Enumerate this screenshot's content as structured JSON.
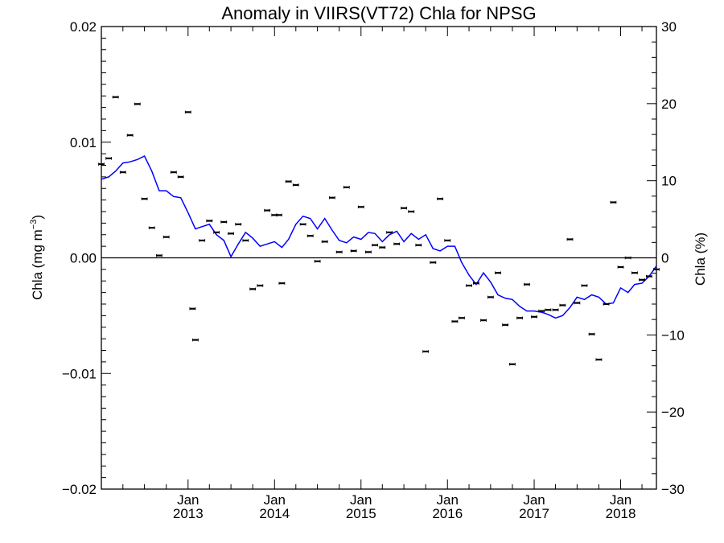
{
  "chart_data": {
    "type": "line",
    "title": "Anomaly in VIIRS(VT72) Chla for NPSG",
    "ylabel_left": "Chla (mg m",
    "ylabel_left_sup": "−3",
    "ylabel_left_close": ")",
    "ylabel_right": "Chla (%)",
    "xlim": [
      "2012-01-01",
      "2018-06-01"
    ],
    "ylim_left": [
      -0.02,
      0.02
    ],
    "ylim_right": [
      -30,
      30
    ],
    "left_ticks": [
      {
        "value": 0.02,
        "label": "0.02"
      },
      {
        "value": 0.01,
        "label": "0.01"
      },
      {
        "value": 0.0,
        "label": "0.00"
      },
      {
        "value": -0.01,
        "label": "−0.01"
      },
      {
        "value": -0.02,
        "label": "−0.02"
      }
    ],
    "right_ticks": [
      {
        "value": 30,
        "label": "30"
      },
      {
        "value": 20,
        "label": "20"
      },
      {
        "value": 10,
        "label": "10"
      },
      {
        "value": 0,
        "label": "0"
      },
      {
        "value": -10,
        "label": "−10"
      },
      {
        "value": -20,
        "label": "−20"
      },
      {
        "value": -30,
        "label": "−30"
      }
    ],
    "x_ticks": [
      {
        "date": "2013-01-01",
        "month": "Jan",
        "year": "2013"
      },
      {
        "date": "2014-01-01",
        "month": "Jan",
        "year": "2014"
      },
      {
        "date": "2015-01-01",
        "month": "Jan",
        "year": "2015"
      },
      {
        "date": "2016-01-01",
        "month": "Jan",
        "year": "2016"
      },
      {
        "date": "2017-01-01",
        "month": "Jan",
        "year": "2017"
      },
      {
        "date": "2018-01-01",
        "month": "Jan",
        "year": "2018"
      }
    ],
    "zero_line": 0,
    "grid": false,
    "colors": {
      "line": "#0000ff",
      "points": "#000000",
      "axes": "#000000"
    },
    "series": [
      {
        "kind": "line",
        "x": [
          "2012-01-01",
          "2012-02-01",
          "2012-03-01",
          "2012-04-01",
          "2012-05-01",
          "2012-06-01",
          "2012-07-01",
          "2012-08-01",
          "2012-09-01",
          "2012-10-01",
          "2012-11-01",
          "2012-12-01",
          "2013-01-01",
          "2013-02-01",
          "2013-03-01",
          "2013-04-01",
          "2013-05-01",
          "2013-06-01",
          "2013-07-01",
          "2013-08-01",
          "2013-09-01",
          "2013-10-01",
          "2013-11-01",
          "2013-12-01",
          "2014-01-01",
          "2014-02-01",
          "2014-03-01",
          "2014-04-01",
          "2014-05-01",
          "2014-06-01",
          "2014-07-01",
          "2014-08-01",
          "2014-09-01",
          "2014-10-01",
          "2014-11-01",
          "2014-12-01",
          "2015-01-01",
          "2015-02-01",
          "2015-03-01",
          "2015-04-01",
          "2015-05-01",
          "2015-06-01",
          "2015-07-01",
          "2015-08-01",
          "2015-09-01",
          "2015-10-01",
          "2015-11-01",
          "2015-12-01",
          "2016-01-01",
          "2016-02-01",
          "2016-03-01",
          "2016-04-01",
          "2016-05-01",
          "2016-06-01",
          "2016-07-01",
          "2016-08-01",
          "2016-09-01",
          "2016-10-01",
          "2016-11-01",
          "2016-12-01",
          "2017-01-01",
          "2017-02-01",
          "2017-03-01",
          "2017-04-01",
          "2017-05-01",
          "2017-06-01",
          "2017-07-01",
          "2017-08-01",
          "2017-09-01",
          "2017-10-01",
          "2017-11-01",
          "2017-12-01",
          "2018-01-01",
          "2018-02-01",
          "2018-03-01",
          "2018-04-01",
          "2018-05-01",
          "2018-06-01"
        ],
        "y": [
          0.0068,
          0.007,
          0.0075,
          0.0082,
          0.0083,
          0.0085,
          0.0088,
          0.0075,
          0.0058,
          0.0058,
          0.0053,
          0.0052,
          0.0039,
          0.0025,
          0.0027,
          0.0029,
          0.002,
          0.0015,
          0.0001,
          0.0012,
          0.0022,
          0.0017,
          0.001,
          0.0012,
          0.0014,
          0.0009,
          0.0016,
          0.0029,
          0.0036,
          0.0034,
          0.0025,
          0.0034,
          0.0024,
          0.0015,
          0.0013,
          0.0018,
          0.0016,
          0.0022,
          0.0021,
          0.0014,
          0.002,
          0.0023,
          0.0014,
          0.0021,
          0.0016,
          0.002,
          0.0008,
          0.0006,
          0.001,
          0.001,
          -0.0004,
          -0.0015,
          -0.0023,
          -0.0013,
          -0.0021,
          -0.0032,
          -0.0035,
          -0.0036,
          -0.0042,
          -0.0046,
          -0.0046,
          -0.0047,
          -0.0049,
          -0.0052,
          -0.005,
          -0.0043,
          -0.0034,
          -0.0036,
          -0.0032,
          -0.0034,
          -0.004,
          -0.0039,
          -0.0026,
          -0.003,
          -0.0023,
          -0.0022,
          -0.0016,
          -0.0007
        ]
      },
      {
        "kind": "points",
        "x": [
          "2012-01-01",
          "2012-02-01",
          "2012-03-01",
          "2012-04-01",
          "2012-05-01",
          "2012-06-01",
          "2012-07-01",
          "2012-08-01",
          "2012-09-01",
          "2012-10-01",
          "2012-11-01",
          "2012-12-01",
          "2013-01-01",
          "2013-01-20",
          "2013-02-01",
          "2013-03-01",
          "2013-04-01",
          "2013-05-01",
          "2013-06-01",
          "2013-07-01",
          "2013-08-01",
          "2013-09-01",
          "2013-10-01",
          "2013-11-01",
          "2013-12-01",
          "2014-01-01",
          "2014-01-20",
          "2014-02-01",
          "2014-03-01",
          "2014-04-01",
          "2014-05-01",
          "2014-06-01",
          "2014-07-01",
          "2014-08-01",
          "2014-09-01",
          "2014-10-01",
          "2014-11-01",
          "2014-12-01",
          "2015-01-01",
          "2015-02-01",
          "2015-03-01",
          "2015-04-01",
          "2015-05-01",
          "2015-06-01",
          "2015-07-01",
          "2015-08-01",
          "2015-09-01",
          "2015-10-01",
          "2015-11-01",
          "2015-12-01",
          "2016-01-01",
          "2016-02-01",
          "2016-03-01",
          "2016-04-01",
          "2016-05-01",
          "2016-06-01",
          "2016-07-01",
          "2016-08-01",
          "2016-09-01",
          "2016-10-01",
          "2016-11-01",
          "2016-12-01",
          "2017-01-01",
          "2017-02-01",
          "2017-03-01",
          "2017-04-01",
          "2017-05-01",
          "2017-06-01",
          "2017-07-01",
          "2017-08-01",
          "2017-09-01",
          "2017-10-01",
          "2017-11-01",
          "2017-12-01",
          "2018-01-01",
          "2018-02-01",
          "2018-03-01",
          "2018-04-01",
          "2018-05-01",
          "2018-06-01"
        ],
        "y": [
          0.0081,
          0.0086,
          0.0139,
          0.0074,
          0.0106,
          0.0133,
          0.0051,
          0.0026,
          0.0002,
          0.0018,
          0.0074,
          0.007,
          0.0126,
          -0.0044,
          -0.0071,
          0.0015,
          0.0032,
          0.0022,
          0.0031,
          0.0021,
          0.0029,
          0.0015,
          -0.0027,
          -0.0024,
          0.0041,
          0.0037,
          0.0037,
          -0.0022,
          0.0066,
          0.0063,
          0.0029,
          0.0019,
          -0.0003,
          0.0014,
          0.0052,
          0.0005,
          0.0061,
          0.0006,
          0.0044,
          0.0005,
          0.0011,
          0.0009,
          0.0022,
          0.0012,
          0.0043,
          0.004,
          0.0011,
          -0.0081,
          -0.0004,
          0.0051,
          0.0015,
          -0.0055,
          -0.0052,
          -0.0024,
          -0.0022,
          -0.0054,
          -0.0034,
          -0.0013,
          -0.0058,
          -0.0092,
          -0.0052,
          -0.0023,
          -0.0051,
          -0.0046,
          -0.0045,
          -0.0045,
          -0.0041,
          0.0016,
          -0.0039,
          -0.0024,
          -0.0066,
          -0.0088,
          -0.004,
          0.0048,
          -0.0008,
          0.0,
          -0.0013,
          -0.0019,
          -0.0016,
          -0.001
        ]
      }
    ]
  }
}
